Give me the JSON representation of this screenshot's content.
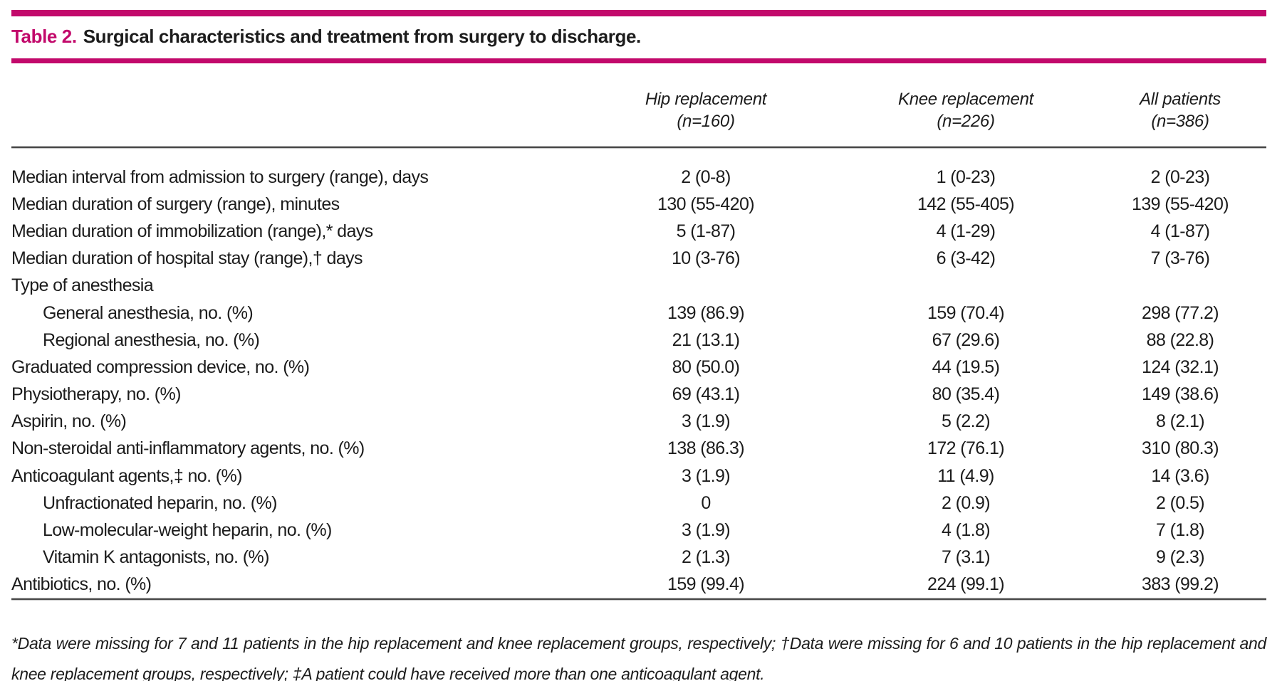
{
  "table": {
    "title_label": "Table 2.",
    "title_text": "Surgical characteristics and treatment from surgery to discharge.",
    "columns": [
      {
        "line1": "Hip replacement",
        "line2": "(n=160)"
      },
      {
        "line1": "Knee replacement",
        "line2": "(n=226)"
      },
      {
        "line1": "All patients",
        "line2": "(n=386)"
      }
    ],
    "rows": [
      {
        "label": "Median interval from admission to surgery (range), days",
        "indent": false,
        "values": [
          "2 (0-8)",
          "1 (0-23)",
          "2 (0-23)"
        ]
      },
      {
        "label": "Median duration of surgery (range), minutes",
        "indent": false,
        "values": [
          "130 (55-420)",
          "142 (55-405)",
          "139 (55-420)"
        ]
      },
      {
        "label": "Median duration of immobilization (range),* days",
        "indent": false,
        "values": [
          "5 (1-87)",
          "4 (1-29)",
          "4 (1-87)"
        ]
      },
      {
        "label": "Median duration of hospital stay (range),† days",
        "indent": false,
        "values": [
          "10 (3-76)",
          "6 (3-42)",
          "7 (3-76)"
        ]
      },
      {
        "label": "Type of anesthesia",
        "indent": false,
        "values": [
          "",
          "",
          ""
        ]
      },
      {
        "label": "General anesthesia, no. (%)",
        "indent": true,
        "values": [
          "139 (86.9)",
          "159 (70.4)",
          "298 (77.2)"
        ]
      },
      {
        "label": "Regional anesthesia, no. (%)",
        "indent": true,
        "values": [
          "21 (13.1)",
          "67 (29.6)",
          "88 (22.8)"
        ]
      },
      {
        "label": "Graduated compression device, no. (%)",
        "indent": false,
        "values": [
          "80 (50.0)",
          "44 (19.5)",
          "124 (32.1)"
        ]
      },
      {
        "label": "Physiotherapy, no. (%)",
        "indent": false,
        "values": [
          "69 (43.1)",
          "80 (35.4)",
          "149 (38.6)"
        ]
      },
      {
        "label": "Aspirin, no. (%)",
        "indent": false,
        "values": [
          "3 (1.9)",
          "5 (2.2)",
          "8 (2.1)"
        ]
      },
      {
        "label": "Non-steroidal anti-inflammatory agents, no. (%)",
        "indent": false,
        "values": [
          "138 (86.3)",
          "172 (76.1)",
          "310 (80.3)"
        ]
      },
      {
        "label": "Anticoagulant agents,‡ no. (%)",
        "indent": false,
        "values": [
          "3 (1.9)",
          "11 (4.9)",
          "14 (3.6)"
        ]
      },
      {
        "label": "Unfractionated heparin, no. (%)",
        "indent": true,
        "values": [
          "0",
          "2 (0.9)",
          "2 (0.5)"
        ]
      },
      {
        "label": "Low-molecular-weight heparin, no. (%)",
        "indent": true,
        "values": [
          "3 (1.9)",
          "4 (1.8)",
          "7 (1.8)"
        ]
      },
      {
        "label": "Vitamin K antagonists, no. (%)",
        "indent": true,
        "values": [
          "2 (1.3)",
          "7 (3.1)",
          "9 (2.3)"
        ]
      },
      {
        "label": "Antibiotics, no. (%)",
        "indent": false,
        "values": [
          "159 (99.4)",
          "224 (99.1)",
          "383 (99.2)"
        ]
      }
    ],
    "footnote": "*Data were missing for 7 and 11 patients in the hip replacement and knee replacement groups, respectively; †Data were missing for 6 and 10 patients in the hip replacement and knee replacement groups, respectively; ‡A patient could have received more than one anticoagulant agent.",
    "colors": {
      "accent": "#c2096b",
      "rule_gray": "#4a4a4a",
      "text": "#1c1c1c"
    }
  }
}
